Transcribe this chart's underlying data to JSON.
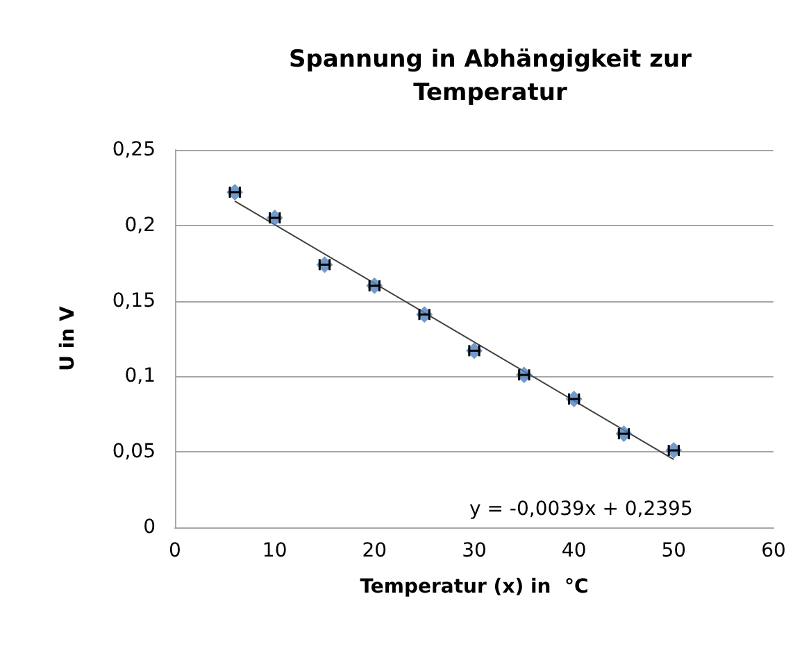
{
  "chart_data": {
    "type": "scatter",
    "title": "Spannung in Abhängigkeit zur\nTemperatur",
    "xlabel": "Temperatur (x) in  °C",
    "ylabel": "U in V",
    "x": [
      6,
      10,
      15,
      20,
      25,
      30,
      35,
      40,
      45,
      50
    ],
    "series": [
      {
        "color": "#4f81bd",
        "values": [
          0.222,
          0.205,
          0.174,
          0.16,
          0.141,
          0.117,
          0.101,
          0.085,
          0.062,
          0.051
        ],
        "xerrors": [
          0.5,
          0.5,
          0.5,
          0.5,
          0.5,
          0.5,
          0.5,
          0.5,
          0.5,
          0.5
        ],
        "marker": "diamond"
      },
      {
        "type": "line",
        "color": "#404040",
        "x": [
          6,
          50
        ],
        "values": [
          0.216,
          0.045
        ],
        "marker": "none"
      }
    ],
    "annotations": [
      "y = -0,0039x + 0,2395"
    ],
    "xlim": [
      0,
      60
    ],
    "xticks": [
      0,
      10,
      20,
      30,
      40,
      50,
      60
    ],
    "ylim": [
      0,
      0.25
    ],
    "yticks": [
      {
        "value": 0,
        "label": "0"
      },
      {
        "value": 0.05,
        "label": "0,05"
      },
      {
        "value": 0.1,
        "label": "0,1"
      },
      {
        "value": 0.15,
        "label": "0,15"
      },
      {
        "value": 0.2,
        "label": "0,2"
      },
      {
        "value": 0.25,
        "label": "0,25"
      }
    ],
    "grid": "y"
  }
}
